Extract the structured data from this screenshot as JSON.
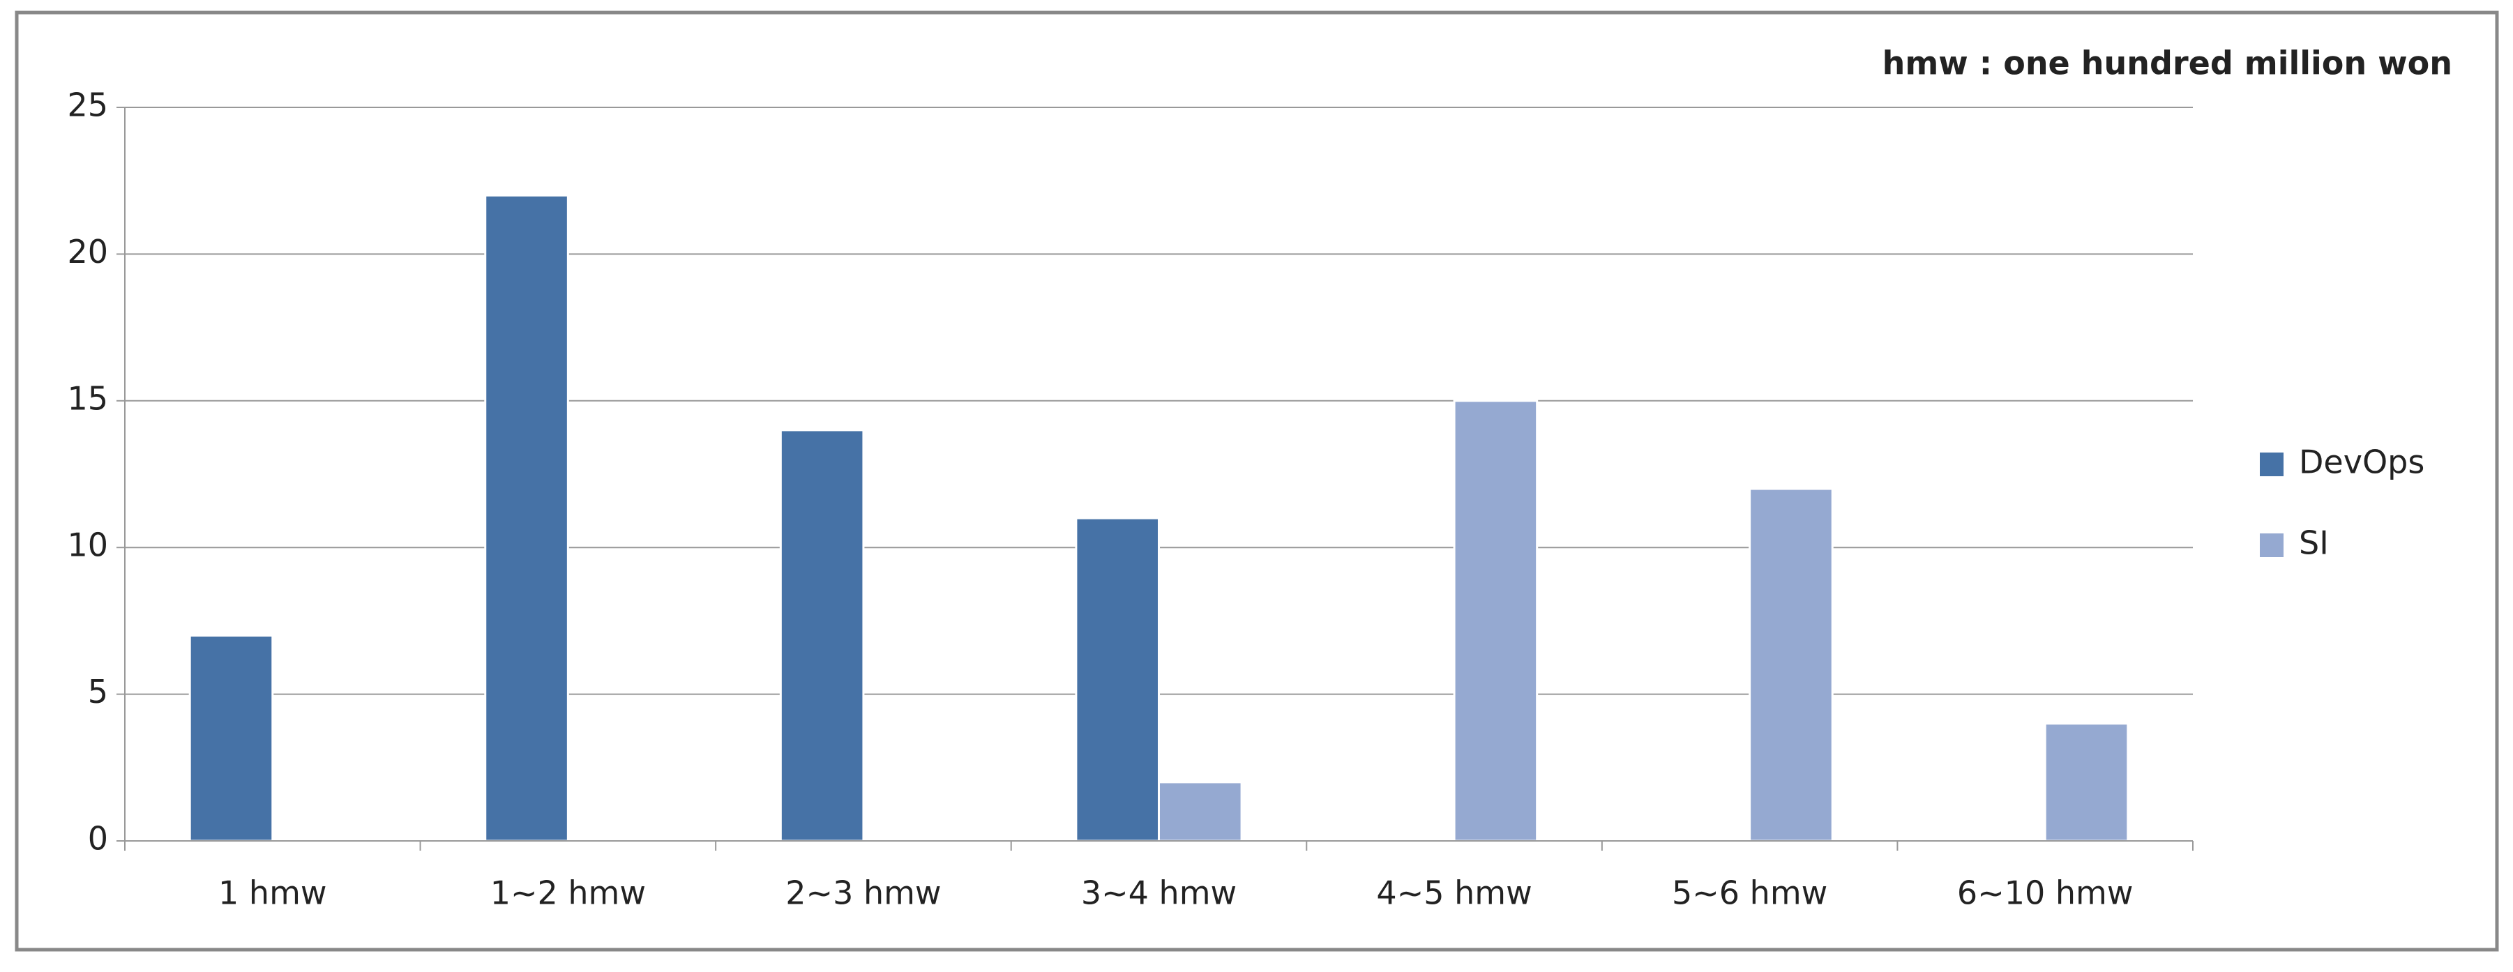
{
  "chart_data": {
    "type": "bar",
    "annotation": "hmw : one hundred million won",
    "categories": [
      "1 hmw",
      "1~2 hmw",
      "2~3 hmw",
      "3~4 hmw",
      "4~5 hmw",
      "5~6 hmw",
      "6~10 hmw"
    ],
    "series": [
      {
        "name": "DevOps",
        "color": "#4672a6",
        "values": [
          7,
          22,
          14,
          11,
          0,
          0,
          0
        ]
      },
      {
        "name": "SI",
        "color": "#95a9d1",
        "values": [
          0,
          0,
          0,
          2,
          15,
          12,
          4
        ]
      }
    ],
    "ylim": [
      0,
      25
    ],
    "yticks": [
      0,
      5,
      10,
      15,
      20,
      25
    ],
    "grid": true,
    "legend": "right"
  }
}
